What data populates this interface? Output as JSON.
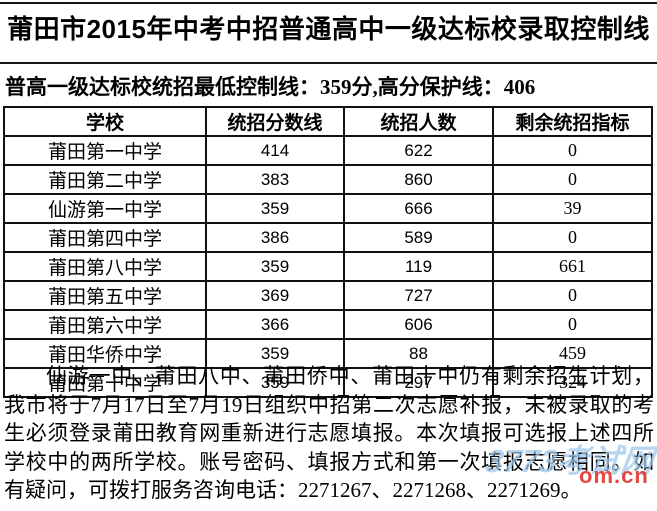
{
  "document": {
    "title": "莆田市2015年中考中招普通高中一级达标校录取控制线",
    "subtitle": "普高一级达标校统招最低控制线：359分,高分保护线：406"
  },
  "table": {
    "headers": {
      "school": "学校",
      "score_line": "统招分数线",
      "admitted": "统招人数",
      "remaining": "剩余统招指标"
    },
    "rows": [
      {
        "school": "莆田第一中学",
        "score_line": "414",
        "admitted": "622",
        "remaining": "0"
      },
      {
        "school": "莆田第二中学",
        "score_line": "383",
        "admitted": "860",
        "remaining": "0"
      },
      {
        "school": "仙游第一中学",
        "score_line": "359",
        "admitted": "666",
        "remaining": "39"
      },
      {
        "school": "莆田第四中学",
        "score_line": "386",
        "admitted": "589",
        "remaining": "0"
      },
      {
        "school": "莆田第八中学",
        "score_line": "359",
        "admitted": "119",
        "remaining": "661"
      },
      {
        "school": "莆田第五中学",
        "score_line": "369",
        "admitted": "727",
        "remaining": "0"
      },
      {
        "school": "莆田第六中学",
        "score_line": "366",
        "admitted": "606",
        "remaining": "0"
      },
      {
        "school": "莆田华侨中学",
        "score_line": "359",
        "admitted": "88",
        "remaining": "459"
      },
      {
        "school": "莆田第十中学",
        "score_line": "359",
        "admitted": "297",
        "remaining": "324"
      }
    ]
  },
  "notice": {
    "text": "仙游一中、莆田八中、莆田侨中、莆田十中仍有剩余招生计划，我市将于7月17日至7月19日组织中招第二次志愿补报，未被录取的考生必须登录莆田教育网重新进行志愿填报。本次填报可选报上述四所学校中的两所学校。账号密码、填报方式和第一次填报志愿相同。如有疑问，可拨打服务咨询电话：2271267、2271268、2271269。"
  },
  "watermark": {
    "site": "3773考试网",
    "domain": "om.cn",
    "blue_color": "#9cc6ea",
    "red_color": "#e3342c"
  }
}
